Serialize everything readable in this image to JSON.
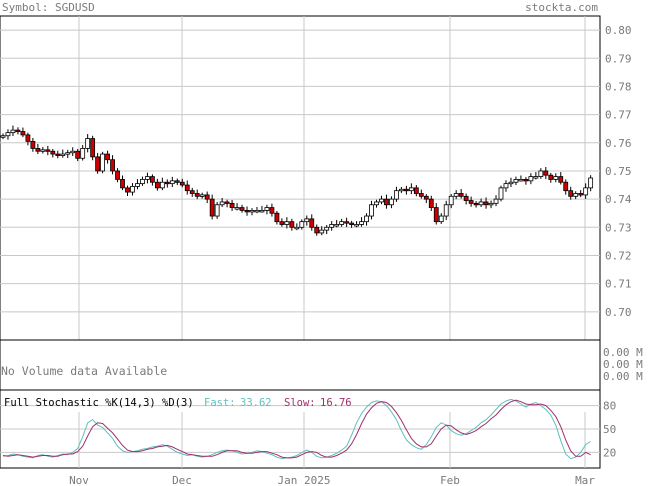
{
  "header": {
    "symbol_label": "Symbol: SGDUSD",
    "site": "stockta.com"
  },
  "volume_panel": {
    "message": "No Volume data Available",
    "ticks": [
      "0.00 M",
      "0.00 M",
      "0.00 M"
    ]
  },
  "stoch_panel": {
    "title": "Full Stochastic %K(14,3) %D(3)",
    "fast_label": "Fast:",
    "fast_value": "33.62",
    "slow_label": "Slow:",
    "slow_value": "16.76",
    "ticks": [
      80,
      50,
      20
    ],
    "fast_color": "#5fbfbf",
    "slow_color": "#a0306a"
  },
  "colors": {
    "up": "#ffffff",
    "down": "#cc0000",
    "grid": "#c8c8c8",
    "label": "#7a7a7a"
  },
  "chart_data": [
    {
      "type": "candlestick",
      "title": "",
      "ylim": [
        0.69,
        0.805
      ],
      "y_ticks": [
        0.8,
        0.79,
        0.78,
        0.77,
        0.76,
        0.75,
        0.74,
        0.73,
        0.72,
        0.71,
        0.7
      ],
      "x_labels": [
        "Nov",
        "Dec",
        "Jan 2025",
        "Feb",
        "Mar"
      ],
      "close": [
        0.7625,
        0.7636,
        0.7645,
        0.764,
        0.7628,
        0.7605,
        0.758,
        0.757,
        0.7575,
        0.757,
        0.756,
        0.7555,
        0.756,
        0.7565,
        0.757,
        0.7545,
        0.758,
        0.7615,
        0.755,
        0.75,
        0.756,
        0.754,
        0.75,
        0.747,
        0.744,
        0.7425,
        0.7445,
        0.7455,
        0.747,
        0.748,
        0.746,
        0.744,
        0.746,
        0.7455,
        0.7465,
        0.746,
        0.745,
        0.743,
        0.742,
        0.741,
        0.7415,
        0.74,
        0.734,
        0.738,
        0.739,
        0.7385,
        0.737,
        0.737,
        0.736,
        0.7355,
        0.736,
        0.736,
        0.736,
        0.737,
        0.735,
        0.732,
        0.731,
        0.732,
        0.73,
        0.73,
        0.732,
        0.733,
        0.73,
        0.728,
        0.729,
        0.73,
        0.731,
        0.731,
        0.732,
        0.7315,
        0.731,
        0.731,
        0.732,
        0.734,
        0.738,
        0.739,
        0.74,
        0.738,
        0.74,
        0.743,
        0.7435,
        0.743,
        0.744,
        0.742,
        0.741,
        0.74,
        0.737,
        0.732,
        0.734,
        0.738,
        0.741,
        0.742,
        0.741,
        0.7395,
        0.7385,
        0.738,
        0.739,
        0.738,
        0.7385,
        0.74,
        0.744,
        0.7455,
        0.746,
        0.747,
        0.747,
        0.7465,
        0.748,
        0.748,
        0.75,
        0.7485,
        0.747,
        0.748,
        0.746,
        0.743,
        0.741,
        0.742,
        0.7415,
        0.744,
        0.7475
      ],
      "fast_k": [
        15,
        16,
        18,
        17,
        15,
        14,
        13,
        16,
        17,
        15,
        14,
        16,
        18,
        17,
        20,
        25,
        40,
        58,
        62,
        55,
        52,
        45,
        38,
        28,
        22,
        20,
        21,
        22,
        24,
        25,
        27,
        28,
        30,
        28,
        24,
        20,
        18,
        16,
        17,
        15,
        14,
        15,
        17,
        20,
        22,
        23,
        22,
        20,
        18,
        19,
        20,
        22,
        21,
        19,
        17,
        14,
        12,
        13,
        14,
        16,
        20,
        23,
        20,
        15,
        13,
        14,
        16,
        19,
        23,
        28,
        42,
        58,
        70,
        78,
        84,
        86,
        85,
        80,
        72,
        62,
        48,
        36,
        30,
        26,
        24,
        30,
        40,
        52,
        58,
        55,
        48,
        44,
        42,
        44,
        48,
        52,
        58,
        62,
        68,
        75,
        82,
        86,
        88,
        86,
        82,
        78,
        82,
        84,
        80,
        75,
        68,
        55,
        35,
        18,
        12,
        14,
        20,
        30,
        34
      ],
      "slow_d": [
        16,
        15,
        16,
        17,
        16,
        15,
        14,
        15,
        16,
        16,
        15,
        15,
        17,
        18,
        18,
        21,
        28,
        41,
        53,
        58,
        57,
        51,
        45,
        37,
        29,
        23,
        21,
        21,
        22,
        24,
        25,
        27,
        28,
        29,
        27,
        24,
        21,
        18,
        17,
        16,
        15,
        15,
        15,
        17,
        20,
        22,
        22,
        22,
        20,
        19,
        19,
        20,
        21,
        21,
        19,
        17,
        14,
        13,
        13,
        14,
        17,
        20,
        21,
        20,
        16,
        14,
        14,
        16,
        19,
        23,
        31,
        43,
        57,
        69,
        77,
        83,
        85,
        84,
        79,
        71,
        61,
        49,
        38,
        31,
        27,
        27,
        31,
        41,
        50,
        55,
        54,
        49,
        45,
        43,
        45,
        48,
        53,
        57,
        63,
        68,
        75,
        81,
        85,
        87,
        85,
        82,
        81,
        81,
        82,
        80,
        74,
        66,
        53,
        36,
        22,
        15,
        15,
        20,
        17
      ]
    }
  ]
}
